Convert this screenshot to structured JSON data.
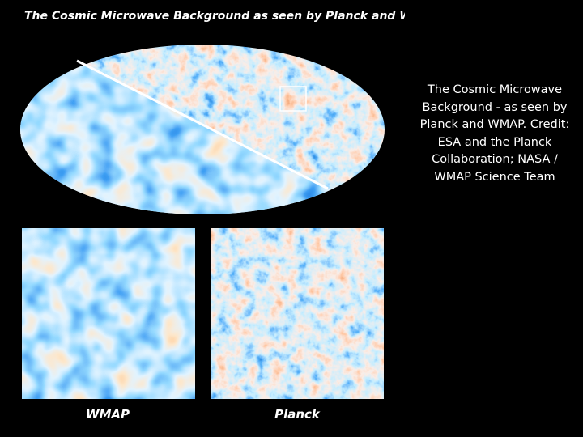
{
  "figure": {
    "title": "The Cosmic Microwave Background as seen by Planck and WMAP",
    "left_label": "WMAP",
    "right_label": "Planck"
  },
  "caption": "The Cosmic Microwave Background - as seen by Planck and WMAP. Credit: ESA and the Planck Collaboration; NASA / WMAP Science Team"
}
